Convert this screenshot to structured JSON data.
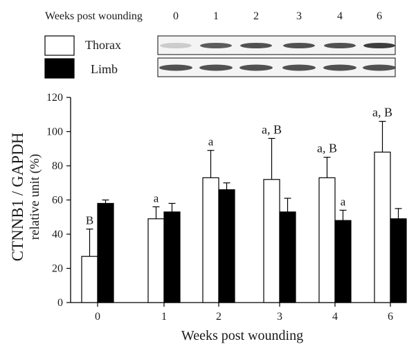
{
  "blot": {
    "header_label": "Weeks post wounding",
    "lane_labels": [
      "0",
      "1",
      "2",
      "3",
      "4",
      "6"
    ],
    "top_band_intensity": [
      0.25,
      0.8,
      0.85,
      0.85,
      0.85,
      0.95
    ],
    "bottom_band_intensity": [
      0.85,
      0.85,
      0.85,
      0.85,
      0.85,
      0.85
    ]
  },
  "legend": {
    "items": [
      {
        "label": "Thorax",
        "color": "#ffffff"
      },
      {
        "label": "Limb",
        "color": "#000000"
      }
    ]
  },
  "chart_data": {
    "type": "bar",
    "xlabel": "Weeks post wounding",
    "ylabel_line1": "CTNNB1 / GAPDH",
    "ylabel_line2": "relative unit (%)",
    "ylim": [
      0,
      120
    ],
    "yticks": [
      0,
      20,
      40,
      60,
      80,
      100,
      120
    ],
    "categories": [
      "0",
      "1",
      "2",
      "3",
      "4",
      "6"
    ],
    "series": [
      {
        "name": "Thorax",
        "color": "#ffffff",
        "values": [
          27,
          49,
          73,
          72,
          73,
          88
        ],
        "errors": [
          16,
          7,
          16,
          24,
          12,
          18
        ],
        "annotations": [
          "B",
          "a",
          "a",
          "a, B",
          "a, B",
          "a, B"
        ]
      },
      {
        "name": "Limb",
        "color": "#000000",
        "values": [
          58,
          53,
          66,
          53,
          48,
          49
        ],
        "errors": [
          2,
          5,
          4,
          8,
          6,
          6
        ],
        "annotations": [
          "",
          "",
          "",
          "",
          "a",
          ""
        ]
      }
    ]
  }
}
